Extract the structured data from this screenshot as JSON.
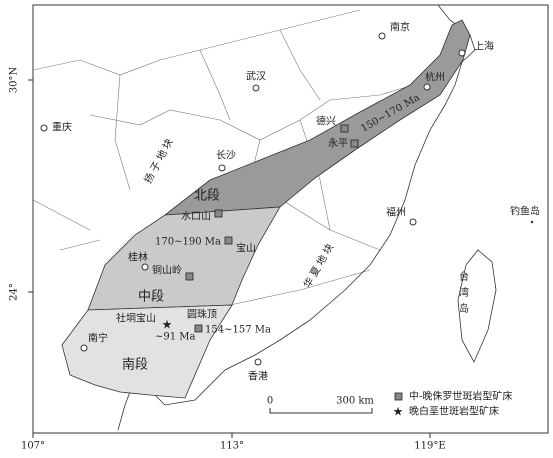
{
  "axes": {
    "x_labels": [
      "107°",
      "113°",
      "119°E"
    ],
    "y_labels": [
      "30°N",
      "24°"
    ]
  },
  "cities": [
    "南京",
    "上海",
    "杭州",
    "武汉",
    "重庆",
    "长沙",
    "福州",
    "香港",
    "南宁",
    "桂林"
  ],
  "islands": [
    "钓鱼岛",
    "台湾岛"
  ],
  "blocks": [
    "扬子地块",
    "华夏地块"
  ],
  "segments": [
    "北段",
    "中段",
    "南段"
  ],
  "deposits": [
    "德兴",
    "永平",
    "水口山",
    "宝山",
    "铜山岭",
    "圆珠顶",
    "社垌宝山"
  ],
  "ages": [
    "150~170 Ma",
    "170~190 Ma",
    "154~157 Ma",
    "~91 Ma"
  ],
  "legend": [
    "中-晚侏罗世斑岩型矿床",
    "晚白垩世斑岩型矿床"
  ],
  "scale": [
    "0",
    "300 km"
  ]
}
